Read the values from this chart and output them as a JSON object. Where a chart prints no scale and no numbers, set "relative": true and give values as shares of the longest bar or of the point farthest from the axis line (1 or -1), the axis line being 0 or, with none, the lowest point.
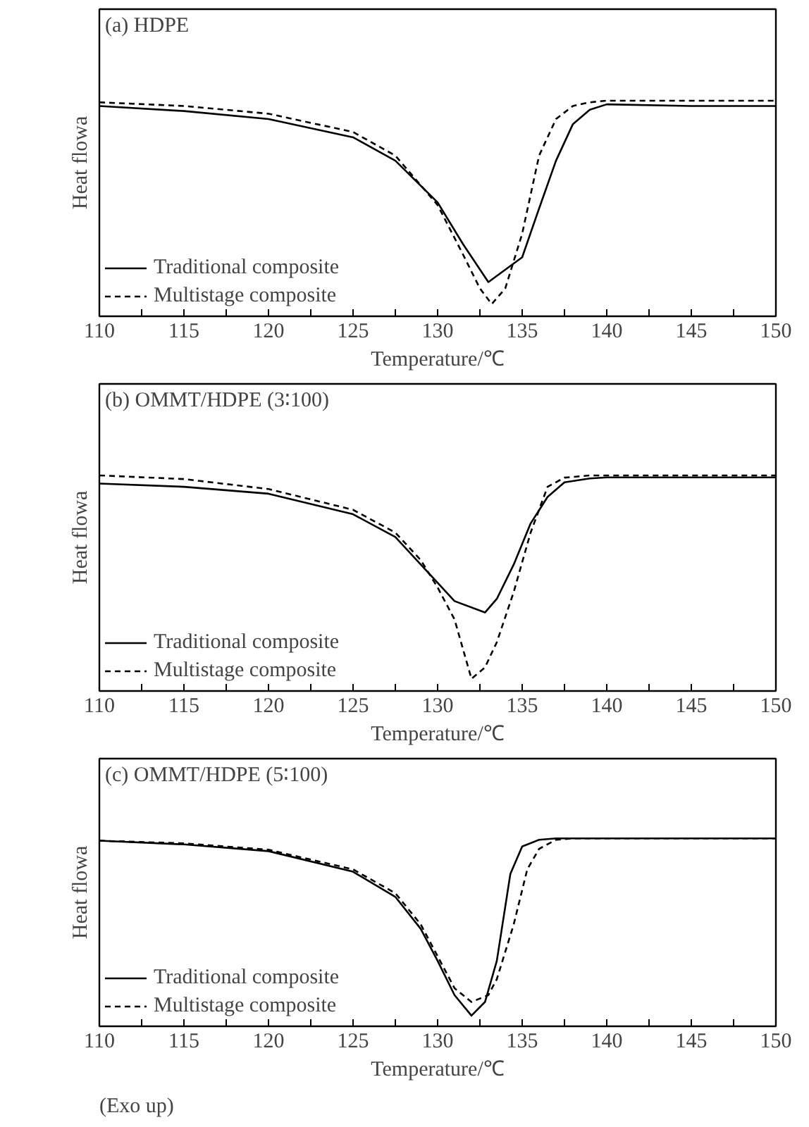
{
  "chart_data": [
    {
      "type": "line",
      "title": "(a) HDPE",
      "xlabel": "Temperature/℃",
      "ylabel": "Heat flowa",
      "relative": true,
      "legend": "bottom left",
      "grid": false,
      "xlim": [
        110,
        150
      ],
      "xticks": [
        110,
        {
          "value": 112.5,
          "label": null
        },
        115,
        {
          "value": 117.5,
          "label": null
        },
        120,
        {
          "value": 122.5,
          "label": null
        },
        125,
        {
          "value": 127.5,
          "label": null
        },
        130,
        {
          "value": 132.5,
          "label": null
        },
        135,
        {
          "value": 137.5,
          "label": null
        },
        140,
        {
          "value": 142.5,
          "label": null
        },
        145,
        {
          "value": 147.5,
          "label": null
        },
        150
      ],
      "series": [
        {
          "name": "Traditional composite",
          "color": "#000000",
          "line_style": "solid",
          "x": [
            110,
            115,
            120,
            125,
            127.5,
            130,
            131.5,
            133,
            135,
            136,
            137,
            138,
            139,
            140,
            145,
            150
          ],
          "values": [
            0.974,
            0.949,
            0.91,
            0.82,
            0.705,
            0.5,
            0.295,
            0.108,
            0.23,
            0.47,
            0.705,
            0.885,
            0.956,
            0.982,
            0.974,
            0.974
          ]
        },
        {
          "name": "Multistage composite",
          "color": "#000000",
          "line_style": "dashed",
          "x": [
            110,
            115,
            120,
            125,
            127.5,
            130,
            131.5,
            132.5,
            133.2,
            134,
            135,
            136,
            137,
            138,
            139,
            140,
            150
          ],
          "values": [
            0.992,
            0.974,
            0.936,
            0.846,
            0.73,
            0.487,
            0.244,
            0.077,
            0,
            0.077,
            0.346,
            0.73,
            0.91,
            0.974,
            0.992,
            1,
            1
          ]
        }
      ]
    },
    {
      "type": "line",
      "title": "(b) OMMT/HDPE (3∶100)",
      "xlabel": "Temperature/℃",
      "ylabel": "Heat flowa",
      "relative": true,
      "legend": "bottom left",
      "grid": false,
      "xlim": [
        110,
        150
      ],
      "xticks": [
        110,
        {
          "value": 112.5,
          "label": null
        },
        115,
        {
          "value": 117.5,
          "label": null
        },
        120,
        {
          "value": 122.5,
          "label": null
        },
        125,
        {
          "value": 127.5,
          "label": null
        },
        130,
        {
          "value": 132.5,
          "label": null
        },
        135,
        {
          "value": 137.5,
          "label": null
        },
        140,
        {
          "value": 142.5,
          "label": null
        },
        145,
        {
          "value": 147.5,
          "label": null
        },
        150
      ],
      "series": [
        {
          "name": "Traditional composite",
          "color": "#000000",
          "line_style": "solid",
          "x": [
            110,
            115,
            120,
            125,
            127.5,
            129,
            130,
            131,
            132.8,
            133.5,
            134.5,
            135.5,
            136.5,
            137.5,
            139,
            140,
            150
          ],
          "values": [
            0.96,
            0.944,
            0.91,
            0.809,
            0.697,
            0.562,
            0.472,
            0.382,
            0.326,
            0.393,
            0.562,
            0.764,
            0.894,
            0.966,
            0.985,
            0.99,
            0.99
          ]
        },
        {
          "name": "Multistage composite",
          "color": "#000000",
          "line_style": "dashed",
          "x": [
            110,
            115,
            120,
            125,
            127.5,
            129,
            130,
            131,
            132,
            132.8,
            133.5,
            134.5,
            135.5,
            136.5,
            137.5,
            139,
            150
          ],
          "values": [
            1,
            0.982,
            0.933,
            0.831,
            0.719,
            0.584,
            0.449,
            0.292,
            0,
            0.056,
            0.18,
            0.427,
            0.719,
            0.944,
            0.989,
            1,
            1
          ]
        }
      ]
    },
    {
      "type": "line",
      "title": "(c) OMMT/HDPE (5∶100)",
      "xlabel": "Temperature/℃",
      "ylabel": "Heat flowa",
      "relative": true,
      "legend": "bottom left",
      "grid": false,
      "xlim": [
        110,
        150
      ],
      "annotations": [
        "(Exo up)"
      ],
      "xticks": [
        110,
        {
          "value": 112.5,
          "label": null
        },
        115,
        {
          "value": 117.5,
          "label": null
        },
        120,
        {
          "value": 122.5,
          "label": null
        },
        125,
        {
          "value": 127.5,
          "label": null
        },
        130,
        {
          "value": 132.5,
          "label": null
        },
        135,
        {
          "value": 137.5,
          "label": null
        },
        140,
        {
          "value": 142.5,
          "label": null
        },
        145,
        {
          "value": 147.5,
          "label": null
        },
        150
      ],
      "series": [
        {
          "name": "Traditional composite",
          "color": "#000000",
          "line_style": "solid",
          "x": [
            110,
            115,
            120,
            125,
            127.5,
            129,
            130,
            131,
            132,
            132.8,
            133.5,
            134.3,
            135,
            136,
            137,
            150
          ],
          "values": [
            0.987,
            0.966,
            0.928,
            0.812,
            0.67,
            0.49,
            0.309,
            0.116,
            0,
            0.077,
            0.309,
            0.799,
            0.954,
            0.992,
            1,
            1
          ]
        },
        {
          "name": "Multistage composite",
          "color": "#000000",
          "line_style": "dashed",
          "x": [
            110,
            115,
            120,
            125,
            127.5,
            129,
            130,
            131,
            132,
            133,
            133.5,
            134.5,
            135.3,
            136,
            137,
            138,
            150
          ],
          "values": [
            0.987,
            0.972,
            0.936,
            0.825,
            0.691,
            0.515,
            0.335,
            0.155,
            0.077,
            0.116,
            0.206,
            0.515,
            0.825,
            0.941,
            0.992,
            1,
            1
          ]
        }
      ]
    }
  ]
}
